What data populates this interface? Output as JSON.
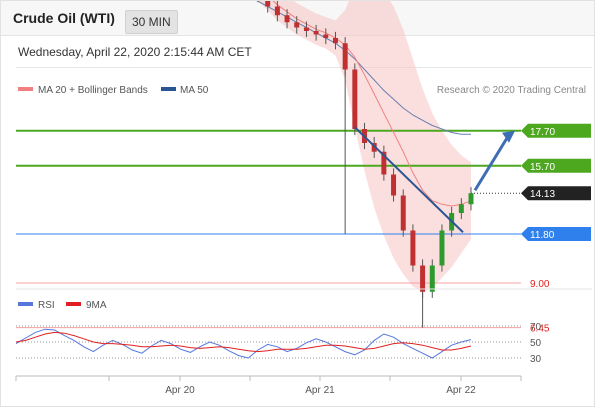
{
  "header": {
    "title": "Crude Oil (WTI)",
    "timeframe": "30 MIN",
    "datetime": "Wednesday, April 22, 2020 2:15:44 AM CET"
  },
  "legend": {
    "main": [
      {
        "name": "MA 20 + Bollinger Bands",
        "color": "#f08080"
      },
      {
        "name": "MA 50",
        "color": "#2b5592"
      }
    ],
    "credit": "Research © 2020 Trading Central",
    "indicator": [
      {
        "name": "RSI",
        "color": "#5577dd"
      },
      {
        "name": "9MA",
        "color": "#e02020"
      }
    ]
  },
  "chart_data": [
    {
      "type": "line",
      "title": "Crude Oil (WTI)",
      "x_labels": [
        "Apr 20",
        "Apr 21",
        "Apr 22"
      ],
      "levels": [
        {
          "label": "17.70",
          "value": 17.7,
          "kind": "resistance",
          "color": "#4da820"
        },
        {
          "label": "15.70",
          "value": 15.7,
          "kind": "resistance",
          "color": "#4da820"
        },
        {
          "label": "14.13",
          "value": 14.13,
          "kind": "last-price",
          "color": "#222222"
        },
        {
          "label": "11.80",
          "value": 11.8,
          "kind": "pivot",
          "color": "#2f80ed"
        },
        {
          "label": "9.00",
          "value": 9.0,
          "kind": "support",
          "color": "#e02020"
        },
        {
          "label": "6.45",
          "value": 6.45,
          "kind": "support",
          "color": "#e02020"
        }
      ],
      "price": [
        31.3,
        31.6,
        31.9,
        32.1,
        32.0,
        31.8,
        31.5,
        31.3,
        31.1,
        30.9,
        30.6,
        30.3,
        30.0,
        29.6,
        29.2,
        28.8,
        28.4,
        27.9,
        27.5,
        27.3,
        27.2,
        26.9,
        26.5,
        26.2,
        25.9,
        25.4,
        24.8,
        24.3,
        23.9,
        23.6,
        23.4,
        23.2,
        23.0,
        22.7,
        21.2,
        17.8,
        17.0,
        16.5,
        15.2,
        14.0,
        12.0,
        10.0,
        8.5,
        10.0,
        12.0,
        13.0,
        13.5,
        14.13
      ],
      "ma20": [
        31.1,
        31.4,
        31.6,
        31.8,
        31.9,
        31.8,
        31.6,
        31.4,
        31.2,
        31.0,
        30.8,
        30.5,
        30.2,
        29.9,
        29.5,
        29.1,
        28.7,
        28.3,
        27.9,
        27.6,
        27.4,
        27.2,
        26.9,
        26.6,
        26.3,
        25.9,
        25.4,
        24.9,
        24.5,
        24.1,
        23.8,
        23.5,
        23.3,
        23.0,
        22.6,
        21.9,
        20.9,
        19.8,
        18.7,
        17.6,
        16.5,
        15.3,
        14.3,
        13.7,
        13.5,
        13.4,
        13.5,
        13.7
      ],
      "ma50": [
        31.3,
        31.2,
        31.1,
        31.0,
        30.9,
        30.7,
        30.5,
        30.3,
        30.1,
        29.9,
        29.6,
        29.3,
        29.0,
        28.7,
        28.4,
        28.1,
        27.8,
        27.5,
        27.2,
        26.9,
        26.6,
        26.3,
        26.0,
        25.7,
        25.4,
        25.1,
        24.8,
        24.5,
        24.2,
        23.9,
        23.6,
        23.3,
        23.0,
        22.7,
        22.3,
        21.8,
        21.2,
        20.6,
        20.0,
        19.5,
        19.0,
        18.6,
        18.3,
        18.0,
        17.8,
        17.6,
        17.5,
        17.5
      ],
      "bb_width": [
        1.0,
        1.0,
        1.0,
        0.9,
        0.9,
        0.9,
        0.9,
        0.9,
        0.8,
        0.8,
        0.8,
        0.8,
        0.8,
        0.8,
        0.8,
        0.8,
        0.8,
        0.8,
        0.8,
        0.8,
        0.8,
        0.8,
        0.8,
        0.8,
        0.8,
        0.8,
        0.8,
        0.9,
        0.9,
        0.9,
        0.9,
        0.9,
        0.9,
        1.0,
        2.0,
        4.0,
        5.5,
        6.5,
        7.0,
        7.2,
        7.0,
        6.5,
        5.8,
        5.0,
        4.2,
        3.5,
        2.8,
        2.2
      ],
      "projection": {
        "from": 14.3,
        "to": 17.7
      }
    },
    {
      "type": "line",
      "title": "RSI",
      "y_ticks": [
        70,
        50,
        30
      ],
      "ylim": [
        0,
        100
      ],
      "rsi": [
        48,
        55,
        62,
        66,
        65,
        58,
        52,
        44,
        38,
        46,
        52,
        47,
        40,
        36,
        45,
        52,
        48,
        41,
        37,
        44,
        50,
        46,
        39,
        33,
        30,
        40,
        47,
        44,
        38,
        42,
        49,
        54,
        50,
        44,
        38,
        34,
        40,
        52,
        60,
        56,
        48,
        42,
        36,
        30,
        38,
        46,
        50,
        53
      ],
      "ma9": [
        50,
        52,
        56,
        60,
        62,
        61,
        58,
        54,
        50,
        48,
        48,
        47,
        46,
        44,
        44,
        45,
        46,
        45,
        43,
        42,
        43,
        44,
        43,
        41,
        39,
        38,
        39,
        41,
        41,
        41,
        42,
        44,
        46,
        46,
        45,
        43,
        41,
        42,
        45,
        48,
        49,
        48,
        46,
        43,
        40,
        40,
        42,
        45
      ]
    }
  ]
}
